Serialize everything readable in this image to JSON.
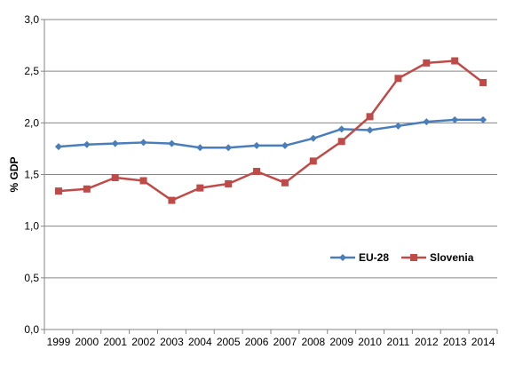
{
  "chart_data": {
    "type": "line",
    "title": "",
    "xlabel": "",
    "ylabel": "% GDP",
    "ylim": [
      0,
      3
    ],
    "yticks": [
      "0,0",
      "0,5",
      "1,0",
      "1,5",
      "2,0",
      "2,5",
      "3,0"
    ],
    "ytick_values": [
      0,
      0.5,
      1,
      1.5,
      2,
      2.5,
      3
    ],
    "categories": [
      "1999",
      "2000",
      "2001",
      "2002",
      "2003",
      "2004",
      "2005",
      "2006",
      "2007",
      "2008",
      "2009",
      "2010",
      "2011",
      "2012",
      "2013",
      "2014"
    ],
    "grid": "horizontal",
    "legend_position": "bottom-right",
    "series": [
      {
        "name": "EU-28",
        "color": "#4a7ebb",
        "marker": "diamond",
        "values": [
          1.77,
          1.79,
          1.8,
          1.81,
          1.8,
          1.76,
          1.76,
          1.78,
          1.78,
          1.85,
          1.94,
          1.93,
          1.97,
          2.01,
          2.03,
          2.03
        ]
      },
      {
        "name": "Slovenia",
        "color": "#be4b48",
        "marker": "square",
        "values": [
          1.34,
          1.36,
          1.47,
          1.44,
          1.25,
          1.37,
          1.41,
          1.53,
          1.42,
          1.63,
          1.82,
          2.06,
          2.43,
          2.58,
          2.6,
          2.39
        ]
      }
    ]
  }
}
